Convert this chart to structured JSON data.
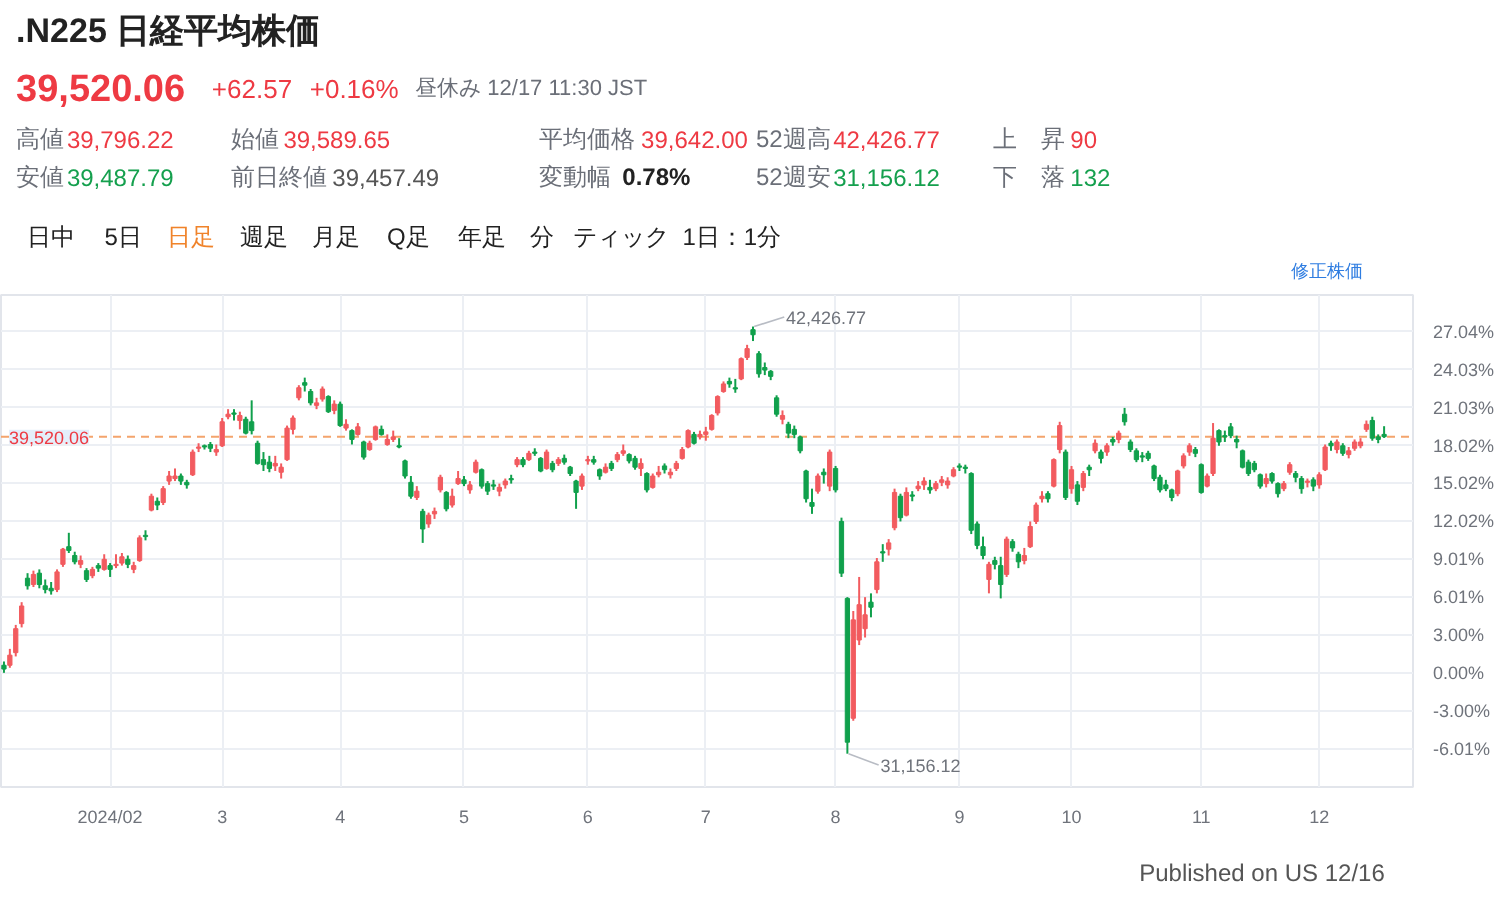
{
  "chart_data": {
    "type": "candlestick",
    "title": ".N225 日経平均株価",
    "categories": [
      null,
      null,
      null,
      null,
      null,
      null,
      null,
      null,
      null,
      null,
      null,
      null,
      null,
      null,
      null,
      null,
      null,
      null,
      "2024/02",
      null,
      null,
      null,
      null,
      null,
      null,
      null,
      null,
      null,
      null,
      null,
      null,
      null,
      null,
      null,
      null,
      null,
      null,
      "3",
      null,
      null,
      null,
      null,
      null,
      null,
      null,
      null,
      null,
      null,
      null,
      null,
      null,
      null,
      null,
      null,
      null,
      null,
      null,
      "4",
      null,
      null,
      null,
      null,
      null,
      null,
      null,
      null,
      null,
      null,
      null,
      null,
      null,
      null,
      null,
      null,
      null,
      null,
      null,
      null,
      "5",
      null,
      null,
      null,
      null,
      null,
      null,
      null,
      null,
      null,
      null,
      null,
      null,
      null,
      null,
      null,
      null,
      null,
      null,
      null,
      null,
      "6",
      null,
      null,
      null,
      null,
      null,
      null,
      null,
      null,
      null,
      null,
      null,
      null,
      null,
      null,
      null,
      null,
      null,
      null,
      null,
      "7",
      null,
      null,
      null,
      null,
      null,
      null,
      null,
      null,
      null,
      null,
      null,
      null,
      null,
      null,
      null,
      null,
      null,
      null,
      null,
      null,
      null,
      "8",
      null,
      null,
      null,
      null,
      null,
      null,
      null,
      null,
      null,
      null,
      null,
      null,
      null,
      null,
      null,
      null,
      null,
      null,
      null,
      null,
      "9",
      null,
      null,
      null,
      null,
      null,
      null,
      null,
      null,
      null,
      null,
      null,
      null,
      null,
      null,
      null,
      null,
      null,
      null,
      "10",
      null,
      null,
      null,
      null,
      null,
      null,
      null,
      null,
      null,
      null,
      null,
      null,
      null,
      null,
      null,
      null,
      null,
      null,
      null,
      null,
      null,
      "11",
      null,
      null,
      null,
      null,
      null,
      null,
      null,
      null,
      null,
      null,
      null,
      null,
      null,
      null,
      null,
      null,
      null,
      null,
      null,
      "12",
      null,
      null,
      null,
      null,
      null,
      null,
      null,
      null,
      null,
      null,
      null
    ],
    "ohlc": [
      [
        0.6,
        0.9,
        0.0,
        0.3
      ],
      [
        0.6,
        1.9,
        0.4,
        1.4
      ],
      [
        1.6,
        3.8,
        1.3,
        3.5
      ],
      [
        3.9,
        5.6,
        3.6,
        5.3
      ],
      [
        7.5,
        7.9,
        6.6,
        6.9
      ],
      [
        7.0,
        8.1,
        6.8,
        7.8
      ],
      [
        7.9,
        8.2,
        6.7,
        7.0
      ],
      [
        6.9,
        7.4,
        6.3,
        6.6
      ],
      [
        6.7,
        7.2,
        6.2,
        6.5
      ],
      [
        6.6,
        8.2,
        6.4,
        8.0
      ],
      [
        8.6,
        9.9,
        8.4,
        9.8
      ],
      [
        10.0,
        11.1,
        9.5,
        9.7
      ],
      [
        9.3,
        9.6,
        8.6,
        8.8
      ],
      [
        8.6,
        9.3,
        8.3,
        8.9
      ],
      [
        8.1,
        8.3,
        7.2,
        7.4
      ],
      [
        7.7,
        8.4,
        7.5,
        8.2
      ],
      [
        8.5,
        8.7,
        8.0,
        8.3
      ],
      [
        8.2,
        9.4,
        8.1,
        9.0
      ],
      [
        8.5,
        8.7,
        7.6,
        8.2
      ],
      [
        8.5,
        9.4,
        8.3,
        8.6
      ],
      [
        8.7,
        9.5,
        8.5,
        9.2
      ],
      [
        9.0,
        9.3,
        8.3,
        8.6
      ],
      [
        8.2,
        8.8,
        7.9,
        8.5
      ],
      [
        8.9,
        10.9,
        8.8,
        10.7
      ],
      [
        10.9,
        11.3,
        10.5,
        10.8
      ],
      [
        12.9,
        14.2,
        12.8,
        14.0
      ],
      [
        13.6,
        13.9,
        12.9,
        13.3
      ],
      [
        13.5,
        14.8,
        13.3,
        14.6
      ],
      [
        15.2,
        16.0,
        14.9,
        15.6
      ],
      [
        15.4,
        16.2,
        15.2,
        15.6
      ],
      [
        15.6,
        15.8,
        14.9,
        15.2
      ],
      [
        15.1,
        15.3,
        14.6,
        14.9
      ],
      [
        15.7,
        17.7,
        15.6,
        17.5
      ],
      [
        17.8,
        18.2,
        17.5,
        17.9
      ],
      [
        18.0,
        18.1,
        17.7,
        17.9
      ],
      [
        18.1,
        18.3,
        17.5,
        17.8
      ],
      [
        17.5,
        18.1,
        17.2,
        17.7
      ],
      [
        18.0,
        20.2,
        17.9,
        19.9
      ],
      [
        20.3,
        20.9,
        20.1,
        20.5
      ],
      [
        20.6,
        20.9,
        20.0,
        20.5
      ],
      [
        20.0,
        20.7,
        19.3,
        20.4
      ],
      [
        20.1,
        20.3,
        18.9,
        19.0
      ],
      [
        19.9,
        21.6,
        18.9,
        19.2
      ],
      [
        18.2,
        18.4,
        16.5,
        16.6
      ],
      [
        16.9,
        17.5,
        16.0,
        16.5
      ],
      [
        16.7,
        17.2,
        15.9,
        16.2
      ],
      [
        16.4,
        17.2,
        16.0,
        16.6
      ],
      [
        15.9,
        16.6,
        15.4,
        16.3
      ],
      [
        16.9,
        19.6,
        16.8,
        19.4
      ],
      [
        19.3,
        20.4,
        18.9,
        20.2
      ],
      [
        21.8,
        22.8,
        21.6,
        22.6
      ],
      [
        23.0,
        23.4,
        22.3,
        22.8
      ],
      [
        22.3,
        22.5,
        21.2,
        21.4
      ],
      [
        21.2,
        21.8,
        20.9,
        21.4
      ],
      [
        21.7,
        22.7,
        21.5,
        22.5
      ],
      [
        21.9,
        22.0,
        20.6,
        20.7
      ],
      [
        20.8,
        21.6,
        20.5,
        21.3
      ],
      [
        21.3,
        21.5,
        19.5,
        19.6
      ],
      [
        19.4,
        20.1,
        19.2,
        19.7
      ],
      [
        19.2,
        19.3,
        18.1,
        18.5
      ],
      [
        18.9,
        19.8,
        18.8,
        19.5
      ],
      [
        18.3,
        18.4,
        16.9,
        17.1
      ],
      [
        17.7,
        18.4,
        17.6,
        18.2
      ],
      [
        18.5,
        19.6,
        18.4,
        19.5
      ],
      [
        19.3,
        19.6,
        18.8,
        18.9
      ],
      [
        18.1,
        18.9,
        18.0,
        18.5
      ],
      [
        18.5,
        19.2,
        18.3,
        18.7
      ],
      [
        18.0,
        18.6,
        17.8,
        17.9
      ],
      [
        16.8,
        16.9,
        15.4,
        15.6
      ],
      [
        15.1,
        15.6,
        13.8,
        14.0
      ],
      [
        13.9,
        14.8,
        13.7,
        14.4
      ],
      [
        12.8,
        13.0,
        10.3,
        11.4
      ],
      [
        11.8,
        12.7,
        11.5,
        12.5
      ],
      [
        12.6,
        13.1,
        12.2,
        12.8
      ],
      [
        14.5,
        15.7,
        14.3,
        15.5
      ],
      [
        14.3,
        14.4,
        12.8,
        13.0
      ],
      [
        13.3,
        14.6,
        13.1,
        14.0
      ],
      [
        15.0,
        16.0,
        14.9,
        15.4
      ],
      [
        15.3,
        15.6,
        14.8,
        15.0
      ],
      [
        14.5,
        15.2,
        14.2,
        14.9
      ],
      [
        15.9,
        16.9,
        15.8,
        16.7
      ],
      [
        16.1,
        16.2,
        14.6,
        14.8
      ],
      [
        15.0,
        15.2,
        14.1,
        14.4
      ],
      [
        14.9,
        15.3,
        14.5,
        14.8
      ],
      [
        14.4,
        15.0,
        14.0,
        14.7
      ],
      [
        14.9,
        15.4,
        14.6,
        15.2
      ],
      [
        15.4,
        15.7,
        15.0,
        15.3
      ],
      [
        16.5,
        17.1,
        16.3,
        16.9
      ],
      [
        16.9,
        17.1,
        16.3,
        16.5
      ],
      [
        16.9,
        17.6,
        16.8,
        17.4
      ],
      [
        17.5,
        17.8,
        17.2,
        17.4
      ],
      [
        17.0,
        17.1,
        15.9,
        16.0
      ],
      [
        16.2,
        17.7,
        16.1,
        17.5
      ],
      [
        16.6,
        16.8,
        15.9,
        16.1
      ],
      [
        16.6,
        17.1,
        16.4,
        16.9
      ],
      [
        17.0,
        17.3,
        16.5,
        16.7
      ],
      [
        16.3,
        16.4,
        15.6,
        15.8
      ],
      [
        15.2,
        15.3,
        13.0,
        14.3
      ],
      [
        14.8,
        15.8,
        14.5,
        15.6
      ],
      [
        16.8,
        17.2,
        16.5,
        16.9
      ],
      [
        16.9,
        17.2,
        16.5,
        16.7
      ],
      [
        16.1,
        16.2,
        15.3,
        15.6
      ],
      [
        15.9,
        16.6,
        15.8,
        16.3
      ],
      [
        16.6,
        16.8,
        16.0,
        16.2
      ],
      [
        16.9,
        17.5,
        16.7,
        17.3
      ],
      [
        17.4,
        18.1,
        17.2,
        17.6
      ],
      [
        17.3,
        17.4,
        16.6,
        16.8
      ],
      [
        17.0,
        17.2,
        16.1,
        16.3
      ],
      [
        16.2,
        17.0,
        15.6,
        16.6
      ],
      [
        15.8,
        15.9,
        14.3,
        14.5
      ],
      [
        14.7,
        15.8,
        14.6,
        15.6
      ],
      [
        15.7,
        16.4,
        15.5,
        15.9
      ],
      [
        16.4,
        16.6,
        15.8,
        16.1
      ],
      [
        15.7,
        16.2,
        15.4,
        15.9
      ],
      [
        16.2,
        16.8,
        16.0,
        16.6
      ],
      [
        17.0,
        17.9,
        16.9,
        17.7
      ],
      [
        17.9,
        19.3,
        17.8,
        19.2
      ],
      [
        18.9,
        19.1,
        18.1,
        18.2
      ],
      [
        18.7,
        19.2,
        18.5,
        18.9
      ],
      [
        18.9,
        19.5,
        18.4,
        19.1
      ],
      [
        19.3,
        20.5,
        19.2,
        20.4
      ],
      [
        20.6,
        22.0,
        20.4,
        21.9
      ],
      [
        22.3,
        23.1,
        22.2,
        22.9
      ],
      [
        23.1,
        23.4,
        22.6,
        22.9
      ],
      [
        22.6,
        23.3,
        22.2,
        22.5
      ],
      [
        23.3,
        25.0,
        23.2,
        24.9
      ],
      [
        25.0,
        26.0,
        24.8,
        25.7
      ],
      [
        27.2,
        27.45,
        26.3,
        26.8
      ],
      [
        25.3,
        25.5,
        23.4,
        23.7
      ],
      [
        24.2,
        24.6,
        23.6,
        24.0
      ],
      [
        23.9,
        24.0,
        23.2,
        23.5
      ],
      [
        21.8,
        22.0,
        20.3,
        20.5
      ],
      [
        20.1,
        20.8,
        19.7,
        20.4
      ],
      [
        19.7,
        19.9,
        18.6,
        19.0
      ],
      [
        19.3,
        19.6,
        18.6,
        18.9
      ],
      [
        18.7,
        18.8,
        17.4,
        17.6
      ],
      [
        16.0,
        16.1,
        13.5,
        13.8
      ],
      [
        13.5,
        14.6,
        12.6,
        13.2
      ],
      [
        14.4,
        15.8,
        14.2,
        15.6
      ],
      [
        15.9,
        16.2,
        15.0,
        15.7
      ],
      [
        14.8,
        17.7,
        14.4,
        17.5
      ],
      [
        16.2,
        16.4,
        14.3,
        14.5
      ],
      [
        12.0,
        12.3,
        7.6,
        7.9
      ],
      [
        5.9,
        6.0,
        -6.41,
        -5.5
      ],
      [
        -3.6,
        4.9,
        -3.8,
        4.2
      ],
      [
        2.6,
        7.6,
        2.2,
        5.4
      ],
      [
        3.5,
        6.0,
        2.8,
        4.6
      ],
      [
        5.6,
        6.3,
        4.4,
        5.2
      ],
      [
        6.6,
        9.1,
        6.3,
        8.8
      ],
      [
        9.6,
        10.2,
        8.8,
        9.5
      ],
      [
        9.8,
        10.6,
        9.3,
        10.3
      ],
      [
        11.5,
        14.6,
        11.3,
        14.3
      ],
      [
        14.0,
        14.2,
        12.0,
        12.3
      ],
      [
        12.5,
        14.7,
        12.4,
        14.3
      ],
      [
        14.1,
        14.4,
        13.6,
        14.0
      ],
      [
        14.6,
        15.2,
        14.4,
        14.8
      ],
      [
        14.9,
        15.5,
        14.5,
        15.2
      ],
      [
        14.7,
        15.3,
        14.2,
        14.5
      ],
      [
        14.6,
        15.2,
        14.4,
        15.0
      ],
      [
        15.1,
        15.6,
        14.8,
        15.3
      ],
      [
        14.9,
        15.5,
        14.6,
        15.2
      ],
      [
        15.6,
        16.3,
        15.5,
        16.1
      ],
      [
        16.4,
        16.6,
        16.0,
        16.3
      ],
      [
        16.3,
        16.5,
        15.8,
        16.2
      ],
      [
        15.8,
        15.9,
        11.0,
        11.3
      ],
      [
        11.8,
        12.0,
        9.8,
        10.1
      ],
      [
        10.0,
        10.8,
        9.0,
        9.3
      ],
      [
        7.4,
        8.8,
        6.3,
        8.6
      ],
      [
        8.9,
        9.2,
        8.2,
        8.6
      ],
      [
        8.5,
        9.2,
        5.9,
        7.0
      ],
      [
        7.8,
        10.8,
        7.6,
        10.6
      ],
      [
        10.4,
        10.6,
        9.6,
        9.9
      ],
      [
        9.4,
        9.6,
        8.3,
        8.8
      ],
      [
        8.9,
        9.9,
        8.6,
        9.3
      ],
      [
        10.0,
        12.0,
        9.9,
        11.6
      ],
      [
        12.0,
        13.5,
        11.8,
        13.3
      ],
      [
        13.8,
        14.4,
        13.5,
        14.0
      ],
      [
        14.2,
        14.4,
        13.5,
        13.8
      ],
      [
        14.8,
        17.0,
        14.7,
        16.9
      ],
      [
        17.7,
        19.9,
        17.4,
        19.6
      ],
      [
        17.5,
        17.7,
        13.7,
        13.9
      ],
      [
        14.6,
        16.4,
        14.2,
        16.1
      ],
      [
        14.9,
        15.2,
        13.3,
        13.6
      ],
      [
        14.7,
        16.0,
        14.4,
        15.8
      ],
      [
        16.3,
        16.5,
        15.6,
        16.1
      ],
      [
        17.6,
        18.5,
        17.4,
        18.2
      ],
      [
        17.5,
        17.7,
        16.6,
        17.0
      ],
      [
        17.5,
        18.2,
        17.2,
        18.0
      ],
      [
        18.5,
        18.7,
        18.0,
        18.3
      ],
      [
        18.5,
        19.2,
        18.2,
        19.0
      ],
      [
        20.5,
        21.0,
        19.6,
        19.9
      ],
      [
        18.3,
        18.5,
        17.5,
        17.7
      ],
      [
        17.6,
        17.8,
        16.7,
        16.9
      ],
      [
        17.2,
        17.5,
        16.7,
        17.1
      ],
      [
        17.4,
        17.6,
        16.8,
        17.0
      ],
      [
        16.4,
        16.5,
        15.2,
        15.4
      ],
      [
        15.5,
        15.7,
        14.3,
        14.5
      ],
      [
        14.9,
        15.3,
        14.4,
        14.6
      ],
      [
        14.5,
        14.6,
        13.6,
        13.9
      ],
      [
        14.2,
        16.1,
        14.0,
        16.0
      ],
      [
        16.4,
        17.4,
        16.2,
        17.2
      ],
      [
        17.5,
        18.2,
        17.2,
        18.0
      ],
      [
        17.7,
        17.9,
        17.1,
        17.4
      ],
      [
        16.5,
        16.6,
        14.2,
        14.3
      ],
      [
        14.8,
        15.8,
        14.7,
        15.6
      ],
      [
        15.8,
        19.8,
        15.6,
        18.6
      ],
      [
        19.2,
        19.3,
        18.0,
        18.3
      ],
      [
        18.8,
        19.2,
        18.3,
        18.7
      ],
      [
        19.5,
        19.8,
        18.6,
        18.8
      ],
      [
        18.5,
        18.8,
        17.8,
        18.3
      ],
      [
        17.6,
        17.7,
        16.2,
        16.3
      ],
      [
        16.7,
        16.9,
        15.6,
        15.8
      ],
      [
        16.6,
        16.8,
        15.9,
        16.1
      ],
      [
        15.7,
        15.8,
        14.6,
        14.8
      ],
      [
        15.0,
        15.8,
        14.7,
        15.4
      ],
      [
        15.8,
        15.9,
        15.0,
        15.2
      ],
      [
        15.0,
        15.1,
        13.9,
        14.2
      ],
      [
        14.6,
        15.2,
        14.4,
        15.0
      ],
      [
        15.9,
        16.7,
        15.7,
        16.5
      ],
      [
        15.8,
        16.0,
        15.1,
        15.5
      ],
      [
        15.4,
        15.6,
        14.2,
        14.6
      ],
      [
        15.1,
        15.4,
        14.7,
        15.2
      ],
      [
        15.3,
        15.5,
        14.4,
        14.8
      ],
      [
        14.9,
        15.9,
        14.6,
        15.7
      ],
      [
        16.1,
        18.1,
        16.0,
        17.9
      ],
      [
        18.2,
        18.4,
        17.6,
        18.0
      ],
      [
        17.7,
        18.5,
        17.4,
        18.3
      ],
      [
        18.0,
        18.2,
        17.2,
        17.4
      ],
      [
        17.3,
        17.9,
        17.0,
        17.6
      ],
      [
        17.8,
        18.5,
        17.6,
        18.3
      ],
      [
        18.0,
        18.6,
        17.8,
        18.3
      ],
      [
        19.3,
        20.0,
        19.1,
        19.7
      ],
      [
        20.0,
        20.3,
        18.4,
        18.6
      ],
      [
        18.7,
        18.9,
        18.2,
        18.5
      ],
      [
        18.9,
        19.55,
        18.62,
        18.72
      ]
    ],
    "colors": [
      "#10a04c",
      "#f25b5f",
      "#f25b5f",
      "#f25b5f",
      "#10a04c",
      "#f25b5f",
      "#10a04c",
      "#10a04c",
      "#10a04c",
      "#f25b5f",
      "#f25b5f",
      "#10a04c",
      "#10a04c",
      "#f25b5f",
      "#10a04c",
      "#f25b5f",
      "#10a04c",
      "#f25b5f",
      "#10a04c",
      "#f25b5f",
      "#f25b5f",
      "#10a04c",
      "#f25b5f",
      "#f25b5f",
      "#10a04c",
      "#f25b5f",
      "#10a04c",
      "#f25b5f",
      "#f25b5f",
      "#f25b5f",
      "#10a04c",
      "#10a04c",
      "#f25b5f",
      "#f25b5f",
      "#10a04c",
      "#10a04c",
      "#f25b5f",
      "#f25b5f",
      "#f25b5f",
      "#10a04c",
      "#f25b5f",
      "#10a04c",
      "#10a04c",
      "#10a04c",
      "#10a04c",
      "#10a04c",
      "#f25b5f",
      "#f25b5f",
      "#f25b5f",
      "#f25b5f",
      "#f25b5f",
      "#10a04c",
      "#10a04c",
      "#f25b5f",
      "#f25b5f",
      "#10a04c",
      "#f25b5f",
      "#10a04c",
      "#f25b5f",
      "#10a04c",
      "#f25b5f",
      "#10a04c",
      "#f25b5f",
      "#f25b5f",
      "#10a04c",
      "#f25b5f",
      "#f25b5f",
      "#10a04c",
      "#10a04c",
      "#10a04c",
      "#f25b5f",
      "#10a04c",
      "#f25b5f",
      "#f25b5f",
      "#f25b5f",
      "#10a04c",
      "#f25b5f",
      "#f25b5f",
      "#10a04c",
      "#f25b5f",
      "#f25b5f",
      "#10a04c",
      "#10a04c",
      "#10a04c",
      "#f25b5f",
      "#f25b5f",
      "#10a04c",
      "#f25b5f",
      "#10a04c",
      "#f25b5f",
      "#10a04c",
      "#10a04c",
      "#f25b5f",
      "#10a04c",
      "#f25b5f",
      "#10a04c",
      "#10a04c",
      "#10a04c",
      "#f25b5f",
      "#f25b5f",
      "#10a04c",
      "#10a04c",
      "#f25b5f",
      "#10a04c",
      "#f25b5f",
      "#f25b5f",
      "#10a04c",
      "#10a04c",
      "#f25b5f",
      "#10a04c",
      "#f25b5f",
      "#f25b5f",
      "#10a04c",
      "#f25b5f",
      "#f25b5f",
      "#f25b5f",
      "#f25b5f",
      "#10a04c",
      "#f25b5f",
      "#f25b5f",
      "#f25b5f",
      "#f25b5f",
      "#f25b5f",
      "#10a04c",
      "#10a04c",
      "#f25b5f",
      "#f25b5f",
      "#10a04c",
      "#10a04c",
      "#10a04c",
      "#10a04c",
      "#10a04c",
      "#f25b5f",
      "#10a04c",
      "#10a04c",
      "#10a04c",
      "#10a04c",
      "#10a04c",
      "#f25b5f",
      "#10a04c",
      "#f25b5f",
      "#10a04c",
      "#10a04c",
      "#10a04c",
      "#f25b5f",
      "#f25b5f",
      "#f25b5f",
      "#10a04c",
      "#f25b5f",
      "#10a04c",
      "#f25b5f",
      "#f25b5f",
      "#10a04c",
      "#f25b5f",
      "#10a04c",
      "#f25b5f",
      "#f25b5f",
      "#10a04c",
      "#f25b5f",
      "#f25b5f",
      "#f25b5f",
      "#f25b5f",
      "#10a04c",
      "#10a04c",
      "#10a04c",
      "#10a04c",
      "#10a04c",
      "#f25b5f",
      "#10a04c",
      "#10a04c",
      "#f25b5f",
      "#10a04c",
      "#10a04c",
      "#f25b5f",
      "#f25b5f",
      "#f25b5f",
      "#f25b5f",
      "#10a04c",
      "#f25b5f",
      "#f25b5f",
      "#10a04c",
      "#f25b5f",
      "#10a04c",
      "#f25b5f",
      "#10a04c",
      "#f25b5f",
      "#10a04c",
      "#f25b5f",
      "#10a04c",
      "#f25b5f",
      "#10a04c",
      "#10a04c",
      "#10a04c",
      "#10a04c",
      "#10a04c",
      "#10a04c",
      "#10a04c",
      "#10a04c",
      "#10a04c",
      "#f25b5f",
      "#f25b5f",
      "#f25b5f",
      "#10a04c",
      "#10a04c",
      "#f25b5f",
      "#f25b5f",
      "#10a04c",
      "#10a04c",
      "#10a04c",
      "#10a04c",
      "#10a04c",
      "#10a04c",
      "#10a04c",
      "#10a04c",
      "#f25b5f",
      "#10a04c",
      "#10a04c",
      "#f25b5f",
      "#f25b5f",
      "#10a04c",
      "#10a04c",
      "#f25b5f",
      "#10a04c",
      "#f25b5f",
      "#f25b5f",
      "#10a04c",
      "#f25b5f",
      "#10a04c",
      "#f25b5f",
      "#f25b5f",
      "#f25b5f",
      "#f25b5f",
      "#10a04c",
      "#10a04c",
      "#10a04c"
    ],
    "ylim": [
      -9.05,
      29.95
    ],
    "yticks": [
      {
        "value": 27.04,
        "label": "27.04%"
      },
      {
        "value": 24.03,
        "label": "24.03%"
      },
      {
        "value": 21.03,
        "label": "21.03%"
      },
      {
        "value": 18.02,
        "label": "18.02%"
      },
      {
        "value": 15.02,
        "label": "15.02%"
      },
      {
        "value": 12.02,
        "label": "12.02%"
      },
      {
        "value": 9.01,
        "label": "9.01%"
      },
      {
        "value": 6.01,
        "label": "6.01%"
      },
      {
        "value": 3.0,
        "label": "3.00%"
      },
      {
        "value": 0,
        "label": "0.00%"
      },
      {
        "value": -3.0,
        "label": "-3.00%"
      },
      {
        "value": -6.01,
        "label": "-6.01%"
      }
    ],
    "grid": true,
    "ref_lines": [
      {
        "axis": "y",
        "value": 18.72,
        "color": "#f4a46c",
        "line_style": "dashed"
      }
    ],
    "annotations": [
      "39,520.06",
      "+62.57",
      "+0.16%",
      "昼休み 12/17 11:30 JST",
      "高値",
      "39,796.22",
      "始値",
      "39,589.65",
      "平均価格",
      "39,642.00",
      "52週高",
      "42,426.77",
      "上　昇",
      "90",
      "安値",
      "39,487.79",
      "前日終値",
      "39,457.49",
      "変動幅",
      "0.78%",
      "52週安",
      "31,156.12",
      "下　落",
      "132",
      "日中",
      "5日",
      "日足",
      "週足",
      "月足",
      "Q足",
      "年足",
      "分",
      "ティック",
      "1日：1分",
      "修正株価",
      "Published on US 12/16",
      "42,426.77",
      "31,156.12",
      "39,520.06"
    ]
  }
}
